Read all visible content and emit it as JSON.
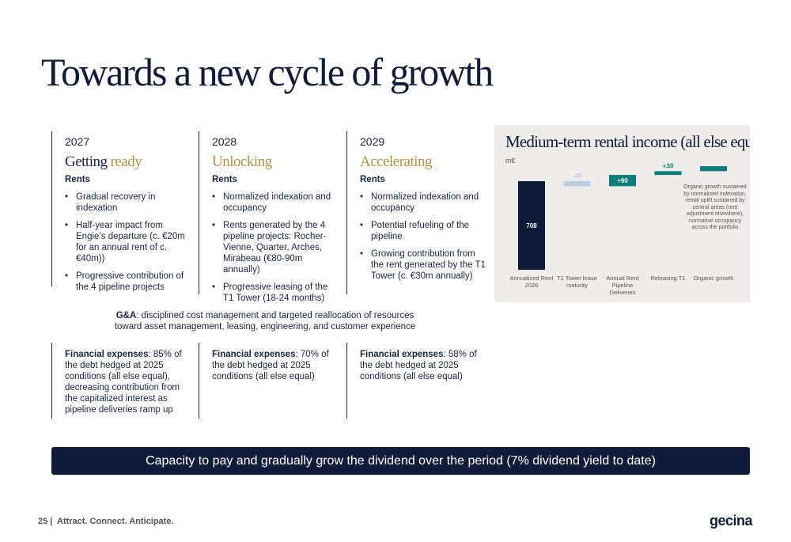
{
  "title": "Towards a new cycle of growth",
  "columns": [
    {
      "year": "2027",
      "heading": {
        "lead": "Getting",
        "accent": "ready"
      },
      "section": "Rents",
      "bullets": [
        "Gradual recovery in indexation",
        "Half-year impact from Engie’s departure (c. €20m for an annual rent of c. €40m))",
        "Progressive contribution of the 4 pipeline projects"
      ],
      "financial": {
        "label": "Financial expenses",
        "text": ": 85% of the debt hedged at 2025 conditions (all else equal), decreasing contribution from the capitalized interest as pipeline deliveries ramp up"
      }
    },
    {
      "year": "2028",
      "heading": {
        "accent": "Unlocking"
      },
      "section": "Rents",
      "bullets": [
        "Normalized indexation and occupancy",
        "Rents generated by the 4 pipeline projects: Rocher-Vienne, Quarter, Arches, Mirabeau (€80-90m annually)",
        "Progressive leasing of the T1 Tower (18-24 months)"
      ],
      "financial": {
        "label": "Financial expenses",
        "text": ": 70% of the debt hedged at 2025 conditions (all else equal)"
      }
    },
    {
      "year": "2029",
      "heading": {
        "accent": "Accelerating"
      },
      "section": "Rents",
      "bullets": [
        "Normalized indexation and occupancy",
        "Potential refueling of the pipeline",
        "Growing contribution from the rent generated by the T1 Tower (c. €30m annually)"
      ],
      "financial": {
        "label": "Financial expenses",
        "text": ": 58% of the debt hedged at 2025 conditions (all else equal)"
      }
    }
  ],
  "ga": {
    "label": "G&A",
    "text": ": disciplined cost management and targeted reallocation of resources toward asset management, leasing, engineering, and customer experience"
  },
  "banner": "Capacity to pay and gradually grow the dividend over the period (7% dividend yield to date)",
  "footer": {
    "page": "25 |",
    "tagline": "Attract. Connect. Anticipate.",
    "logo": "gecina"
  },
  "chart_data": {
    "type": "waterfall",
    "title": "Medium-term rental income (all else equal)",
    "unit": "m€",
    "categories": [
      "Annualized Rent 2026",
      "T1 Tower lease maturity",
      "Annual Rent Pipeline Deliveries",
      "Releasing T1",
      "Organic growth"
    ],
    "values": [
      708,
      -40,
      90,
      30,
      40
    ],
    "value_labels": [
      "708",
      "-40",
      "+90",
      "+30",
      null
    ],
    "colors": [
      "#111c3a",
      "#b9cde6",
      "#0e7c7b",
      "#0e7c7b",
      "#0e7c7b"
    ],
    "annotation": "Organic growth sustained by normalized indexation, rental uplift sustained by central areas (rent adjustment elsewhere), normative occupancy across the portfolio"
  }
}
